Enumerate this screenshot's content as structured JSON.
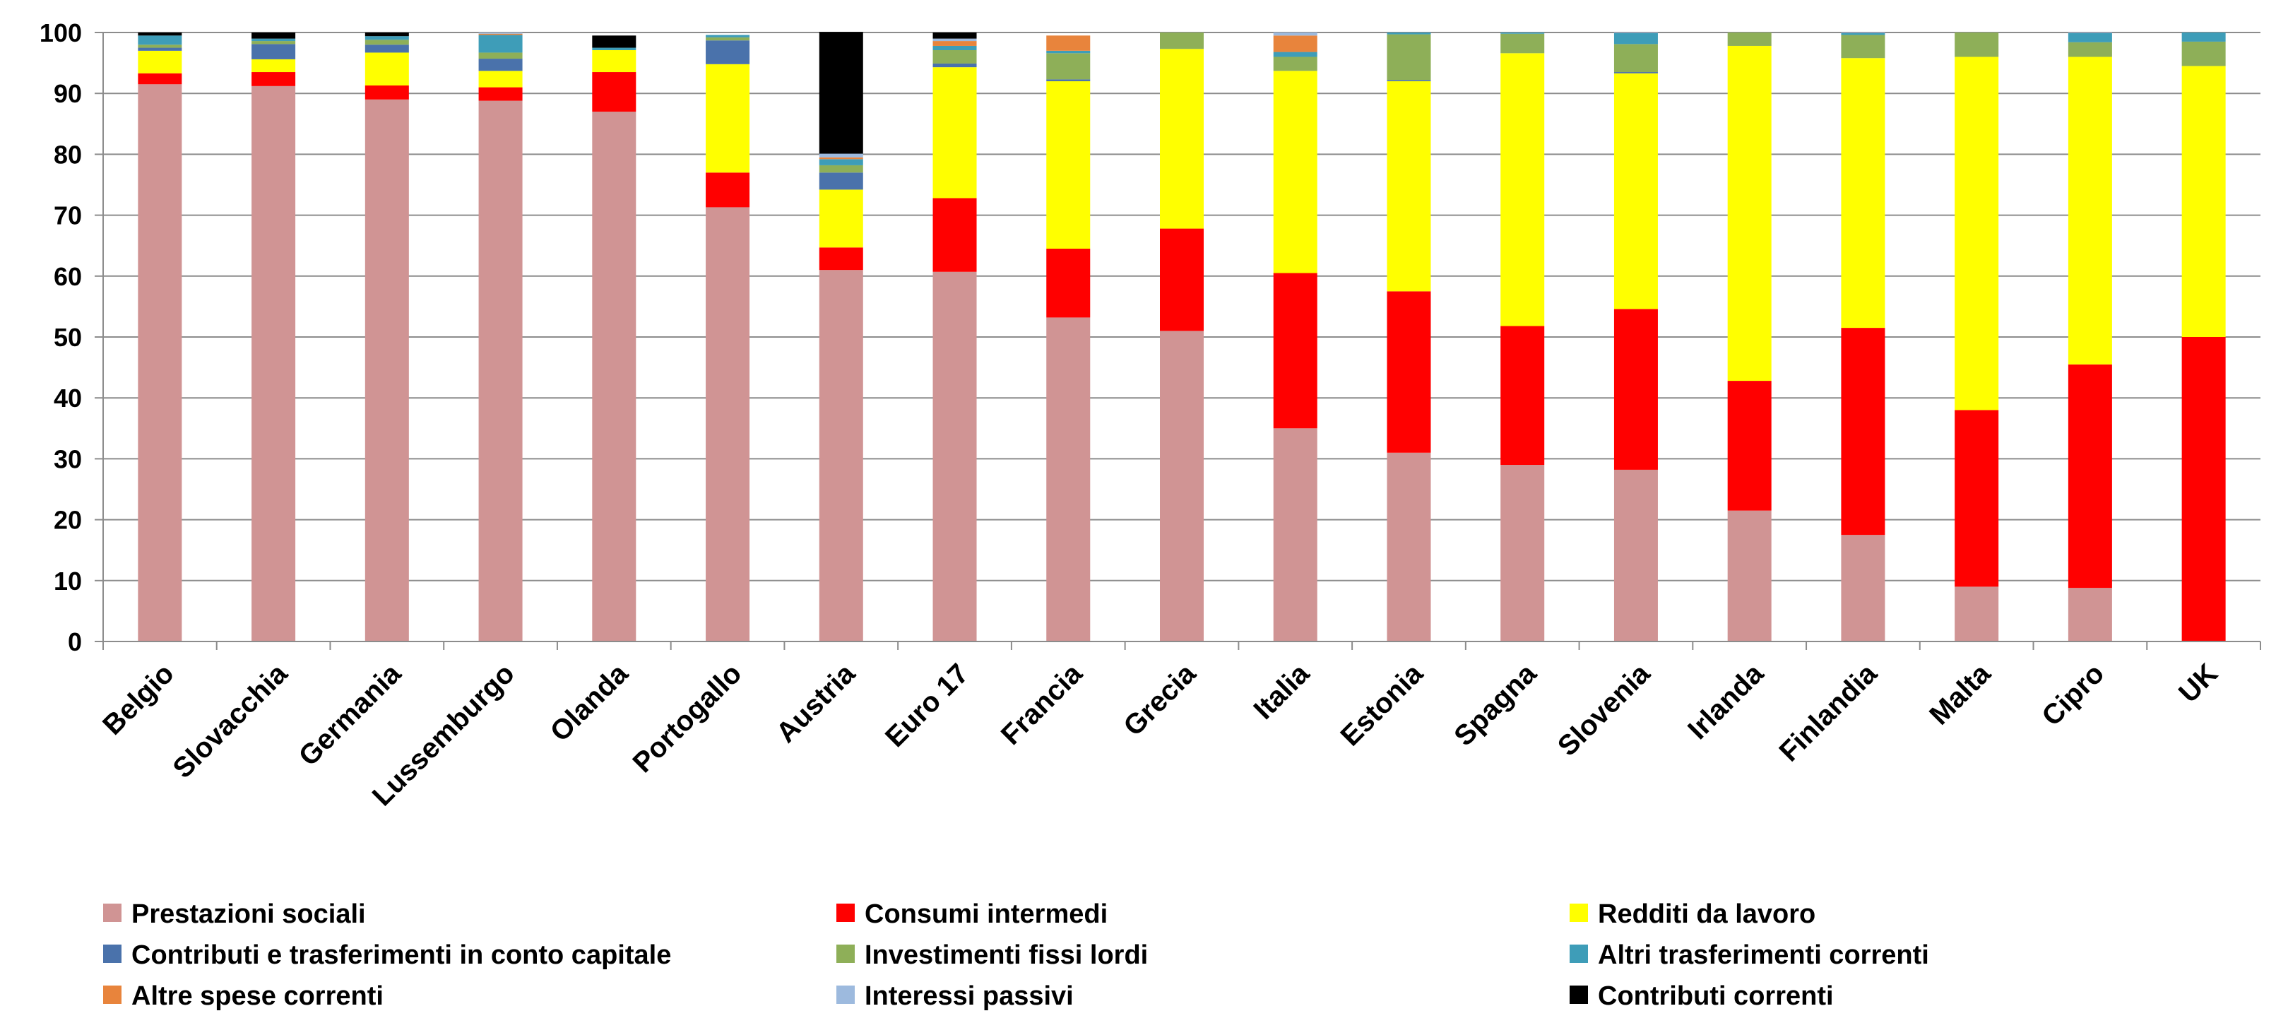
{
  "chart_data": {
    "type": "bar",
    "stacked": true,
    "title": "",
    "xlabel": "",
    "ylabel": "",
    "ylim": [
      0,
      100
    ],
    "yticks": [
      0,
      10,
      20,
      30,
      40,
      50,
      60,
      70,
      80,
      90,
      100
    ],
    "grid": true,
    "legend_position": "bottom",
    "categories": [
      "Belgio",
      "Slovacchia",
      "Germania",
      "Lussemburgo",
      "Olanda",
      "Portogallo",
      "Austria",
      "Euro 17",
      "Francia",
      "Grecia",
      "Italia",
      "Estonia",
      "Spagna",
      "Slovenia",
      "Irlanda",
      "Finlandia",
      "Malta",
      "Cipro",
      "UK"
    ],
    "series": [
      {
        "name": "Prestazioni sociali",
        "color": "#D09494",
        "values": [
          91.5,
          91.2,
          89.0,
          88.8,
          87.0,
          71.3,
          61.0,
          60.7,
          53.2,
          51.0,
          35.0,
          31.0,
          29.0,
          28.2,
          21.5,
          17.5,
          9.0,
          8.8,
          0.0
        ]
      },
      {
        "name": "Consumi intermedi",
        "color": "#FF0000",
        "values": [
          1.8,
          2.3,
          2.3,
          2.2,
          6.5,
          5.7,
          3.7,
          12.1,
          11.3,
          16.8,
          25.5,
          26.5,
          22.8,
          26.4,
          21.3,
          34.0,
          29.0,
          36.7,
          50.0
        ]
      },
      {
        "name": "Redditi da lavoro",
        "color": "#FFFF00",
        "values": [
          3.7,
          2.1,
          5.4,
          2.7,
          3.6,
          17.8,
          9.5,
          21.5,
          27.5,
          29.5,
          33.2,
          34.5,
          44.8,
          38.7,
          55.0,
          44.3,
          58.0,
          50.5,
          44.5
        ]
      },
      {
        "name": "Contributi e trasferimenti in conto capitale",
        "color": "#4A72AB",
        "values": [
          0.5,
          2.5,
          1.3,
          2.0,
          0.0,
          3.9,
          2.8,
          0.6,
          0.3,
          0.0,
          0.0,
          0.2,
          0.0,
          0.2,
          0.0,
          0.0,
          0.0,
          0.0,
          0.0
        ]
      },
      {
        "name": "Investimenti fissi lordi",
        "color": "#8EAF58",
        "values": [
          0.5,
          0.5,
          0.8,
          1.0,
          0.0,
          0.5,
          1.2,
          2.2,
          4.3,
          2.7,
          2.3,
          7.5,
          3.2,
          4.6,
          2.2,
          3.8,
          4.0,
          2.4,
          4.0
        ]
      },
      {
        "name": "Altri trasferimenti correnti",
        "color": "#3E9DB8",
        "values": [
          1.5,
          0.4,
          0.6,
          2.9,
          0.4,
          0.4,
          1.0,
          0.7,
          0.4,
          0.0,
          0.8,
          0.3,
          0.2,
          1.8,
          0.0,
          0.3,
          0.0,
          1.5,
          1.5
        ]
      },
      {
        "name": "Altre spese correnti",
        "color": "#E8843C",
        "values": [
          0.0,
          0.0,
          0.0,
          0.2,
          0.0,
          0.0,
          0.3,
          0.8,
          2.5,
          0.0,
          2.7,
          0.0,
          0.0,
          0.0,
          0.0,
          0.0,
          0.0,
          0.0,
          0.0
        ]
      },
      {
        "name": "Interessi passivi",
        "color": "#9DBADE",
        "values": [
          0.0,
          0.0,
          0.0,
          0.2,
          0.0,
          0.0,
          0.6,
          0.4,
          0.0,
          0.0,
          0.5,
          0.0,
          0.0,
          0.1,
          0.0,
          0.1,
          0.0,
          0.1,
          0.0
        ]
      },
      {
        "name": "Contributi correnti",
        "color": "#000000",
        "values": [
          0.5,
          1.0,
          0.6,
          0.0,
          2.0,
          0.0,
          20.0,
          1.0,
          0.0,
          0.0,
          0.0,
          0.0,
          0.0,
          0.0,
          0.0,
          0.0,
          0.0,
          0.0,
          0.0
        ]
      }
    ]
  }
}
